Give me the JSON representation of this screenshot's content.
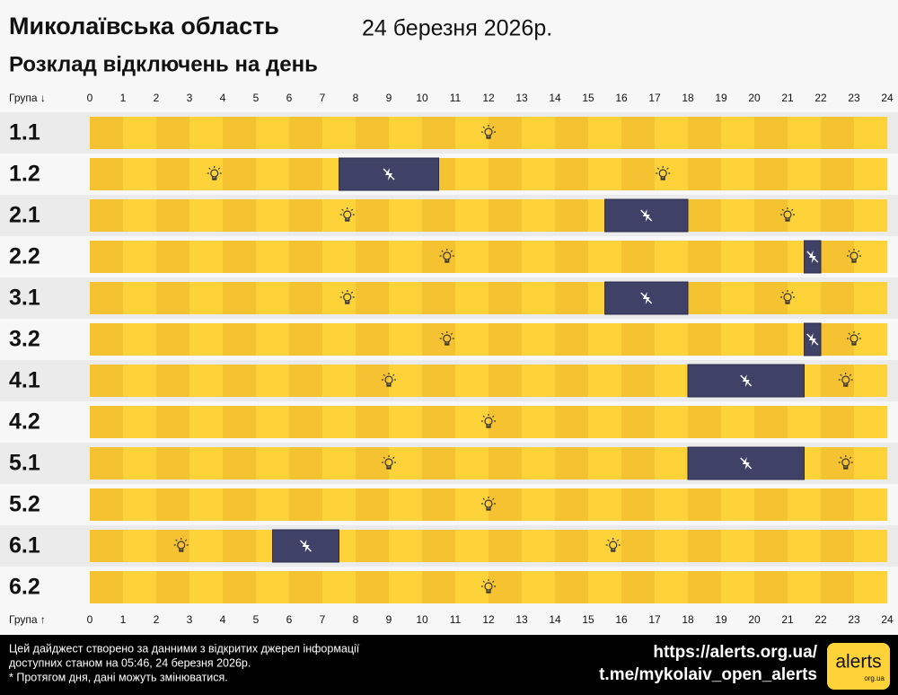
{
  "chart_data": {
    "type": "timeline",
    "title": "Миколаївська область",
    "date": "24 березня 2026р.",
    "subtitle": "Розклад відключень на день",
    "axis_label_top": "Група ↓",
    "axis_label_bottom": "Група ↑",
    "xlim": [
      0,
      24
    ],
    "xticks": [
      0,
      1,
      2,
      3,
      4,
      5,
      6,
      7,
      8,
      9,
      10,
      11,
      12,
      13,
      14,
      15,
      16,
      17,
      18,
      19,
      20,
      21,
      22,
      23,
      24
    ],
    "categories": [
      "1.1",
      "1.2",
      "2.1",
      "2.2",
      "3.1",
      "3.2",
      "4.1",
      "4.2",
      "5.1",
      "5.2",
      "6.1",
      "6.2"
    ],
    "outages": [
      [],
      [
        [
          7.5,
          10.5
        ]
      ],
      [
        [
          15.5,
          18
        ]
      ],
      [
        [
          21.5,
          22
        ]
      ],
      [
        [
          15.5,
          18
        ]
      ],
      [
        [
          21.5,
          22
        ]
      ],
      [
        [
          18,
          21.5
        ]
      ],
      [],
      [
        [
          18,
          21.5
        ]
      ],
      [],
      [
        [
          5.5,
          7.5
        ]
      ],
      []
    ],
    "on_colors": [
      "#f5c232",
      "#fdd339"
    ],
    "off_color": "#3f4166"
  },
  "footer": {
    "note_lines": [
      "Цей дайджест створено за данними з відкритих джерел інформації",
      "доступних станом на 05:46, 24 березня 2026р.",
      "* Протягом дня, дані можуть змінюватися."
    ],
    "links": [
      "https://alerts.org.ua/",
      "t.me/mykolaiv_open_alerts"
    ],
    "logo": "alerts",
    "logo_sub": "org.ua"
  }
}
